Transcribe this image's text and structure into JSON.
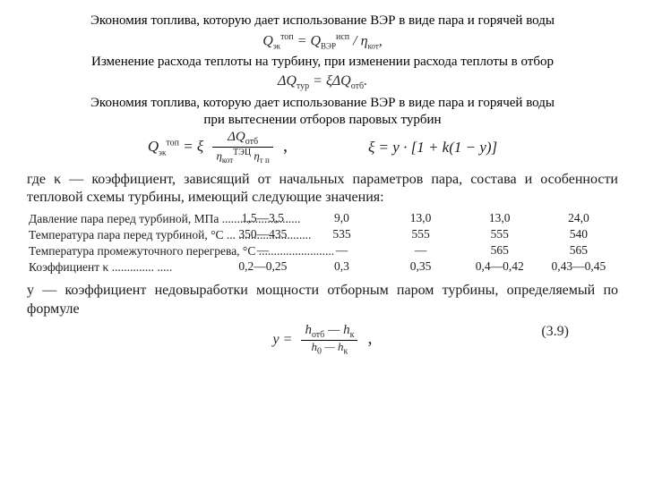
{
  "caption1": "Экономия топлива,  которую дает использование ВЭР  в виде пара и горячей воды",
  "formula1_html": "Q<sub class='smallsub'>эк</sub><sup>топ</sup> = Q<sub class='smallsub'>ВЭР</sub><sup>исп</sup> / η<sub class='smallsub'>кот</sub>,",
  "caption2": "Изменение расхода теплоты на турбину, при изменении расхода теплоты в отбор",
  "formula2_html": "ΔQ<sub>тур</sub> = ξΔQ<sub>отб</sub>.",
  "caption3a": "Экономия топлива,  которую дает использование ВЭР  в виде пара и горячей воды",
  "caption3b": "при вытеснении отборов паровых турбин",
  "formula3_left_lead": "Q<sub class='smallsub'>эк</sub><sup>топ</sup> = ξ",
  "formula3_num": "ΔQ<sub>отб</sub>",
  "formula3_den": "η<sub class='smallsub'>кот</sub><sup>ТЭЦ</sup> η<sub class='smallsub'>т п</sub>",
  "formula3_tail": ",",
  "formula3_right": "ξ = y · [1 + k(1 − y)]",
  "desc_kappa": "где κ — коэффициент, зависящий от начальных параметров пара, состава и особенности тепловой схемы турбины, имеющий следующие значения:",
  "table": {
    "rows": [
      {
        "label": "Давление пара перед турбиной, МПа ..........................",
        "v": [
          "1,5—3,5",
          "9,0",
          "13,0",
          "13,0",
          "24,0"
        ]
      },
      {
        "label": "Температура пара перед турбиной, °С ... ........................",
        "v": [
          "350—435",
          "535",
          "555",
          "555",
          "540"
        ]
      },
      {
        "label": "Температура промежуточного перегрева, °С .........................",
        "v": [
          "—",
          "—",
          "—",
          "565",
          "565"
        ]
      },
      {
        "label": "Коэффициент  κ .............. .....",
        "v": [
          "0,2—0,25",
          "0,3",
          "0,35",
          "0,4—0,42",
          "0,43—0,45"
        ]
      }
    ]
  },
  "desc_y": "y — коэффициент недовыработки мощности отборным паром турбины, определяемый по формуле",
  "formula4_num": "h<sub>отб</sub> — h<sub>к</sub>",
  "formula4_den": "h<sub>0</sub> — h<sub>к</sub>",
  "formula4_lead": "y =",
  "formula4_tail": ",",
  "formula4_eqnum": "(3.9)",
  "colors": {
    "text": "#000000",
    "scan": "#1e1e1e",
    "bg": "#ffffff"
  },
  "fonts": {
    "body": "Times New Roman",
    "caption_size_pt": 11,
    "formula_size_pt": 12,
    "table_size_pt": 10
  }
}
